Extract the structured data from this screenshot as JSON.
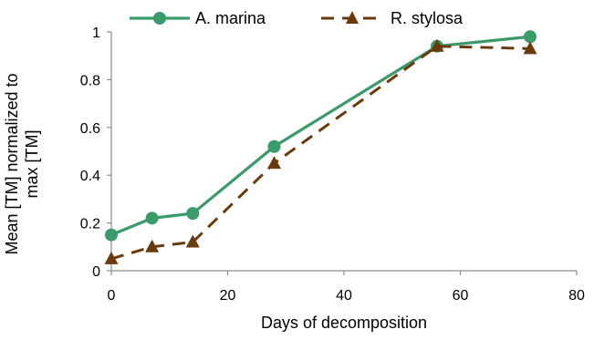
{
  "chart_data": {
    "type": "line",
    "xlabel": "Days of decomposition",
    "ylabel_lines": [
      "Mean [TM] normalized to",
      "max [TM]"
    ],
    "xlim": [
      0,
      80
    ],
    "ylim": [
      0,
      1
    ],
    "x_ticks": [
      0,
      20,
      40,
      60,
      80
    ],
    "y_ticks": [
      0,
      0.2,
      0.4,
      0.6,
      0.8,
      1
    ],
    "x_tick_labels": [
      "0",
      "20",
      "40",
      "60",
      "80"
    ],
    "y_tick_labels": [
      "0",
      "0.2",
      "0.4",
      "0.6",
      "0.8",
      "1"
    ],
    "grid": false,
    "legend_position": "top",
    "series": [
      {
        "name": "A. marina",
        "marker": "circle",
        "line_style": "solid",
        "color": "#3a9a6a",
        "x": [
          0,
          7,
          14,
          28,
          56,
          72
        ],
        "y": [
          0.15,
          0.22,
          0.24,
          0.52,
          0.94,
          0.98
        ]
      },
      {
        "name": "R. stylosa",
        "marker": "triangle",
        "line_style": "dashed",
        "color": "#6b3a0c",
        "x": [
          0,
          7,
          14,
          28,
          56,
          72
        ],
        "y": [
          0.05,
          0.1,
          0.12,
          0.45,
          0.94,
          0.93
        ]
      }
    ]
  }
}
